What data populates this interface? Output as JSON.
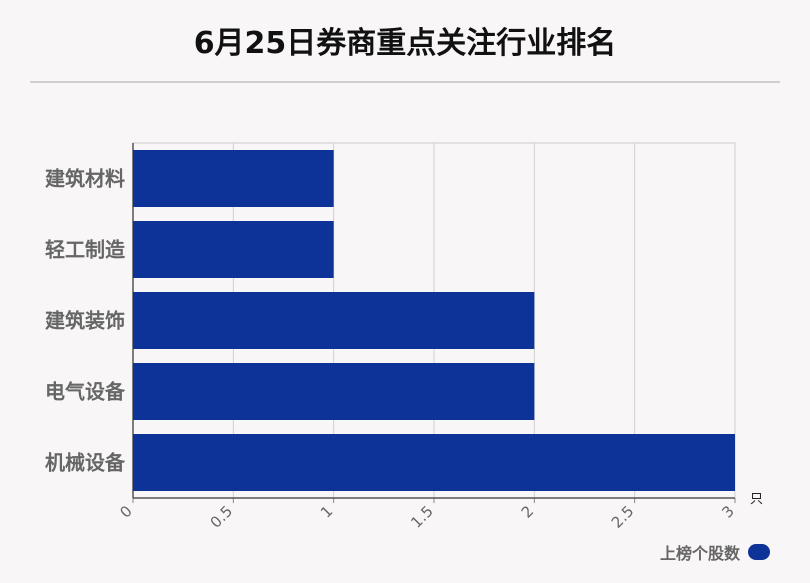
{
  "chart_data": {
    "type": "bar",
    "orientation": "horizontal",
    "title": "6月25日券商重点关注行业排名",
    "categories": [
      "建筑材料",
      "轻工制造",
      "建筑装饰",
      "电气设备",
      "机械设备"
    ],
    "series": [
      {
        "name": "上榜个股数",
        "values": [
          1,
          1,
          2,
          2,
          3
        ],
        "color": "#0d3399"
      }
    ],
    "xlim": [
      0,
      3
    ],
    "x_ticks": [
      "0",
      "0.5",
      "1",
      "1.5",
      "2",
      "2.5",
      "3"
    ],
    "x_unit": "只",
    "grid": true,
    "legend_position": "bottom-right"
  }
}
